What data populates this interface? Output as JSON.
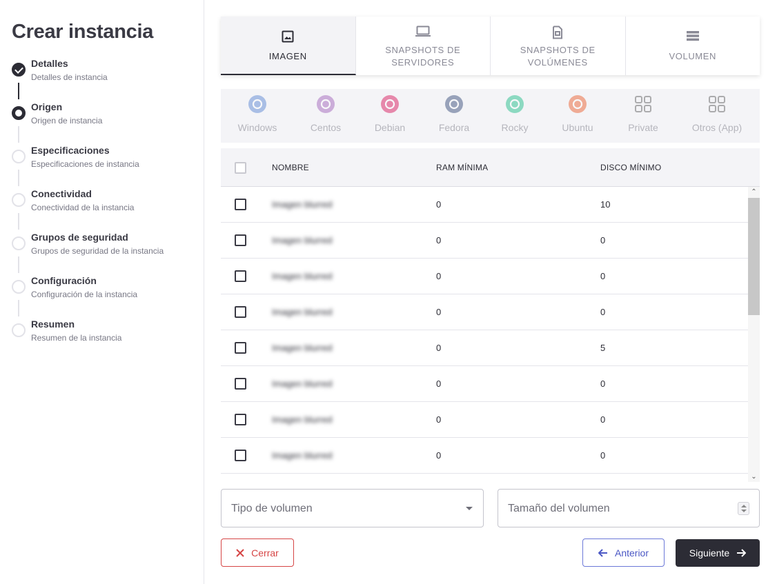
{
  "page": {
    "title": "Crear instancia"
  },
  "steps": [
    {
      "name": "Detalles",
      "sub": "Detalles de instancia",
      "state": "done"
    },
    {
      "name": "Origen",
      "sub": "Origen de instancia",
      "state": "current"
    },
    {
      "name": "Especificaciones",
      "sub": "Especificaciones de instancia",
      "state": "pending"
    },
    {
      "name": "Conectividad",
      "sub": "Conectividad de la instancia",
      "state": "pending"
    },
    {
      "name": "Grupos de seguridad",
      "sub": "Grupos de seguridad de la instancia",
      "state": "pending"
    },
    {
      "name": "Configuración",
      "sub": "Configuración de la instancia",
      "state": "pending"
    },
    {
      "name": "Resumen",
      "sub": "Resumen de la instancia",
      "state": "pending"
    }
  ],
  "tabs": [
    {
      "label": "Imagen",
      "icon": "image-icon",
      "active": true
    },
    {
      "label": "Snapshots de servidores",
      "icon": "laptop-icon",
      "active": false
    },
    {
      "label": "Snapshots de volúmenes",
      "icon": "sim-card-icon",
      "active": false
    },
    {
      "label": "Volumen",
      "icon": "storage-icon",
      "active": false
    }
  ],
  "os_filters": [
    {
      "label": "Windows",
      "icon": "windows-logo-icon",
      "color": "#4f7fd0"
    },
    {
      "label": "Centos",
      "icon": "centos-logo-icon",
      "color": "#9b59b6"
    },
    {
      "label": "Debian",
      "icon": "debian-logo-icon",
      "color": "#d70751"
    },
    {
      "label": "Fedora",
      "icon": "fedora-logo-icon",
      "color": "#294172"
    },
    {
      "label": "Rocky",
      "icon": "rocky-logo-icon",
      "color": "#10b981"
    },
    {
      "label": "Ubuntu",
      "icon": "ubuntu-logo-icon",
      "color": "#e95420"
    },
    {
      "label": "Private",
      "icon": "grid-icon",
      "color": "#555555"
    },
    {
      "label": "Otros (App)",
      "icon": "grid-icon",
      "color": "#555555"
    }
  ],
  "table": {
    "headers": {
      "name": "NOMBRE",
      "ram": "RAM MÍNIMA",
      "disk": "DISCO MÍNIMO"
    },
    "rows": [
      {
        "name": "Imagen blurred",
        "ram": "0",
        "disk": "10"
      },
      {
        "name": "Imagen blurred",
        "ram": "0",
        "disk": "0"
      },
      {
        "name": "Imagen blurred",
        "ram": "0",
        "disk": "0"
      },
      {
        "name": "Imagen blurred",
        "ram": "0",
        "disk": "0"
      },
      {
        "name": "Imagen blurred",
        "ram": "0",
        "disk": "5"
      },
      {
        "name": "Imagen blurred",
        "ram": "0",
        "disk": "0"
      },
      {
        "name": "Imagen blurred",
        "ram": "0",
        "disk": "0"
      },
      {
        "name": "Imagen blurred",
        "ram": "0",
        "disk": "0"
      }
    ]
  },
  "form": {
    "volume_type_placeholder": "Tipo de volumen",
    "volume_size_placeholder": "Tamaño del volumen"
  },
  "buttons": {
    "close": "Cerrar",
    "previous": "Anterior",
    "next": "Siguiente"
  }
}
